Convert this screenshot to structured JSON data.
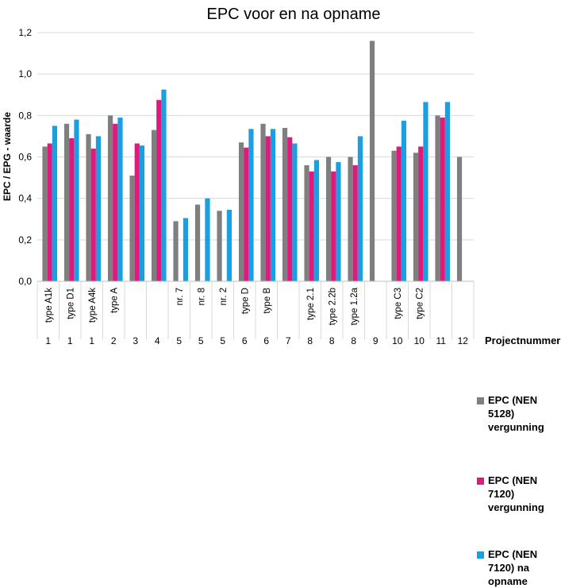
{
  "chart_data": {
    "type": "bar",
    "title": "EPC voor en na opname",
    "ylabel": "EPC / EPG - waarde",
    "xlabel": "Projectnummer",
    "ylim": [
      0,
      1.2
    ],
    "y_ticks": [
      "0,0",
      "0,2",
      "0,4",
      "0,6",
      "0,8",
      "1,0",
      "1,2"
    ],
    "grid": "horizontal",
    "legend_position": "right",
    "categories": [
      {
        "label": "type A1k",
        "project": "1"
      },
      {
        "label": "type D1",
        "project": "1"
      },
      {
        "label": "type A4k",
        "project": "1"
      },
      {
        "label": "type A",
        "project": "2"
      },
      {
        "label": "",
        "project": "3"
      },
      {
        "label": "",
        "project": "4"
      },
      {
        "label": "nr. 7",
        "project": "5"
      },
      {
        "label": "nr. 8",
        "project": "5"
      },
      {
        "label": "nr. 2",
        "project": "5"
      },
      {
        "label": "type D",
        "project": "6"
      },
      {
        "label": "type B",
        "project": "6"
      },
      {
        "label": "",
        "project": "7"
      },
      {
        "label": "type 2.1",
        "project": "8"
      },
      {
        "label": "type 2.2b",
        "project": "8"
      },
      {
        "label": "type 1.2a",
        "project": "8"
      },
      {
        "label": "",
        "project": "9"
      },
      {
        "label": "type C3",
        "project": "10"
      },
      {
        "label": "type C2",
        "project": "10"
      },
      {
        "label": "",
        "project": "11"
      },
      {
        "label": "",
        "project": "12"
      }
    ],
    "series": [
      {
        "name": "EPC (NEN\n5128)\nvergunning",
        "color": "#7f7f7f",
        "values": [
          0.65,
          0.76,
          0.71,
          0.8,
          0.51,
          0.73,
          0.29,
          0.37,
          0.34,
          0.67,
          0.76,
          0.74,
          0.56,
          0.6,
          0.6,
          1.16,
          0.63,
          0.62,
          0.8,
          0.6
        ]
      },
      {
        "name": "EPC (NEN\n7120)\nvergunning",
        "color": "#e0197f",
        "values": [
          0.665,
          0.69,
          0.64,
          0.76,
          0.665,
          0.875,
          null,
          null,
          null,
          0.645,
          0.7,
          0.695,
          0.53,
          0.53,
          0.56,
          null,
          0.65,
          0.65,
          0.79,
          null
        ]
      },
      {
        "name": "EPC (NEN\n7120)         na\nopname",
        "color": "#1aa0e0",
        "values": [
          0.75,
          0.78,
          0.7,
          0.79,
          0.655,
          0.925,
          0.305,
          0.4,
          0.345,
          0.735,
          0.735,
          0.665,
          0.585,
          0.575,
          0.7,
          null,
          0.775,
          0.865,
          0.865,
          null
        ]
      }
    ]
  }
}
